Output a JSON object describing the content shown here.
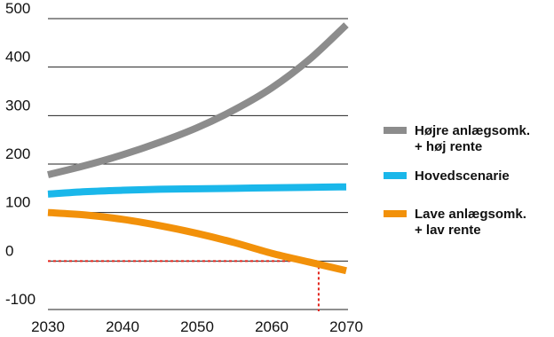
{
  "chart_data": {
    "type": "line",
    "title": "",
    "xlabel": "",
    "ylabel": "",
    "xlim": [
      2030,
      2070
    ],
    "ylim": [
      -100,
      500
    ],
    "x_ticks": [
      2030,
      2040,
      2050,
      2060,
      2070
    ],
    "y_ticks": [
      500,
      400,
      300,
      200,
      100,
      0,
      -100
    ],
    "x_tick_labels": [
      "2030",
      "2040",
      "2050",
      "2060",
      "2070"
    ],
    "y_tick_labels": [
      "500",
      "400",
      "300",
      "200",
      "100",
      "0",
      "-100"
    ],
    "grid": "horizontal",
    "legend_position": "right",
    "series": [
      {
        "name": "Højre anlægsomk.\n+ høj rente",
        "legend_lines": [
          "Højre anlægsomk.",
          "+ høj rente"
        ],
        "color": "#8c8c8c",
        "x": [
          2030,
          2035,
          2040,
          2045,
          2050,
          2055,
          2060,
          2065,
          2070
        ],
        "values": [
          178,
          197,
          219,
          245,
          275,
          312,
          357,
          415,
          487
        ]
      },
      {
        "name": "Hovedscenarie",
        "legend_lines": [
          "Hovedscenarie"
        ],
        "color": "#1ab7ea",
        "x": [
          2030,
          2035,
          2040,
          2045,
          2050,
          2055,
          2060,
          2065,
          2070
        ],
        "values": [
          138,
          143,
          146,
          148,
          149,
          150,
          151,
          152,
          153
        ]
      },
      {
        "name": "Lave anlægsomk.\n+ lav rente",
        "legend_lines": [
          "Lave anlægsomk.",
          "+ lav rente"
        ],
        "color": "#f2910a",
        "x": [
          2030,
          2035,
          2040,
          2045,
          2050,
          2055,
          2060,
          2065,
          2070
        ],
        "values": [
          100,
          95,
          86,
          73,
          57,
          38,
          16,
          -2,
          -20
        ]
      }
    ],
    "reference_lines": {
      "color": "#e2231a",
      "zero_line_y": 0,
      "crossing_x": 2066.3
    }
  }
}
